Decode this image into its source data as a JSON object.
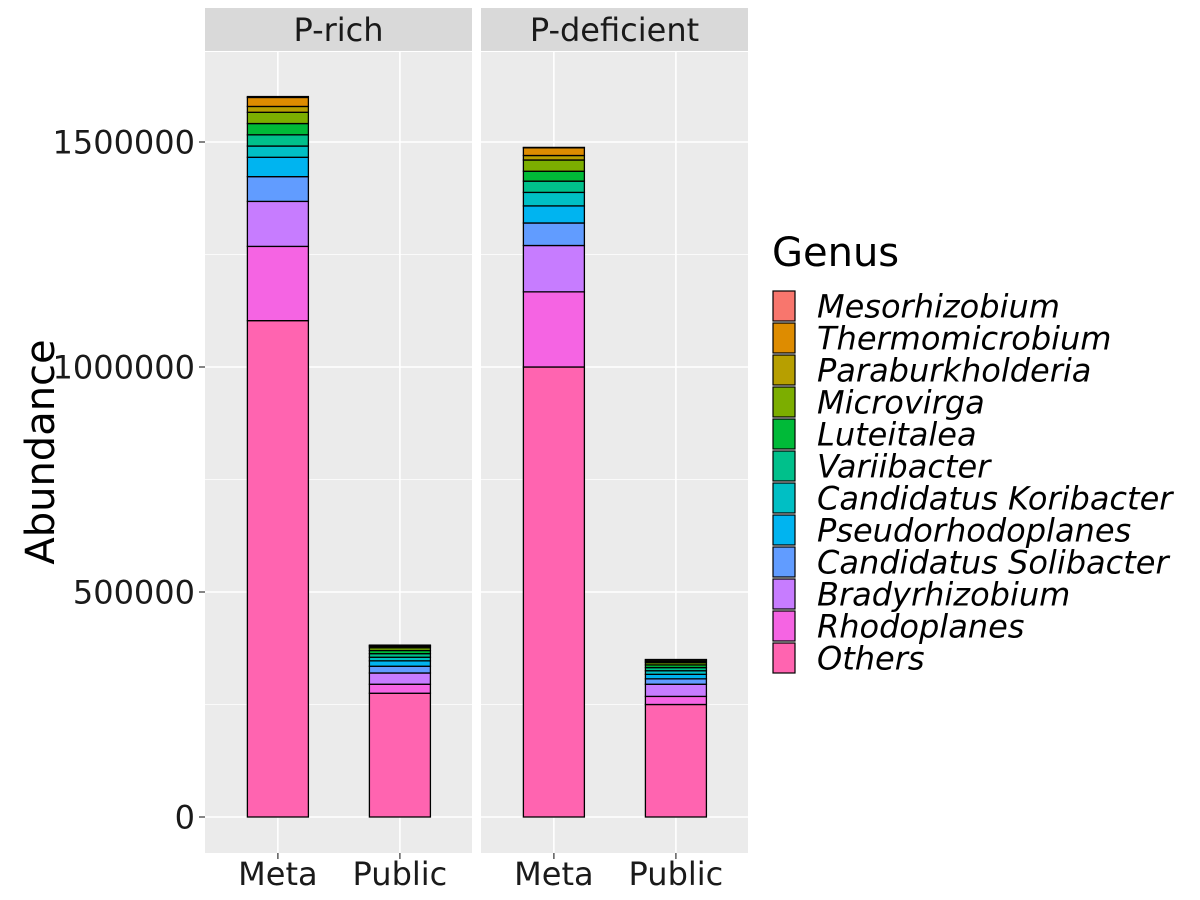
{
  "chart_data": {
    "type": "bar",
    "stacked": true,
    "facets": [
      "P-rich",
      "P-deficient"
    ],
    "categories": [
      "Meta",
      "Public"
    ],
    "ylabel": "Abundance",
    "xlabel": "",
    "ylim": [
      -80000,
      1700000
    ],
    "yticks": [
      0,
      500000,
      1000000,
      1500000
    ],
    "ytick_labels": [
      "0",
      "500000",
      "1000000",
      "1500000"
    ],
    "grid": true,
    "legend": {
      "title": "Genus",
      "position": "right",
      "items": [
        {
          "name": "Mesorhizobium",
          "color": "#F8766D"
        },
        {
          "name": "Thermomicrobium",
          "color": "#DE8C00"
        },
        {
          "name": "Paraburkholderia",
          "color": "#B79F00"
        },
        {
          "name": "Microvirga",
          "color": "#7CAE00"
        },
        {
          "name": "Luteitalea",
          "color": "#00BA38"
        },
        {
          "name": "Variibacter",
          "color": "#00C08B"
        },
        {
          "name": "Candidatus Koribacter",
          "color": "#00BFC4"
        },
        {
          "name": "Pseudorhodoplanes",
          "color": "#00B4F0"
        },
        {
          "name": "Candidatus Solibacter",
          "color": "#619CFF"
        },
        {
          "name": "Bradyrhizobium",
          "color": "#C77CFF"
        },
        {
          "name": "Rhodoplanes",
          "color": "#F564E3"
        },
        {
          "name": "Others",
          "color": "#FF64B0"
        }
      ]
    },
    "stack_order_bottom_to_top": [
      "Others",
      "Rhodoplanes",
      "Bradyrhizobium",
      "Candidatus Solibacter",
      "Pseudorhodoplanes",
      "Candidatus Koribacter",
      "Variibacter",
      "Luteitalea",
      "Microvirga",
      "Paraburkholderia",
      "Thermomicrobium",
      "Mesorhizobium"
    ],
    "series": [
      {
        "facet": "P-rich",
        "category": "Meta",
        "values": {
          "Others": 1103000,
          "Rhodoplanes": 165000,
          "Bradyrhizobium": 100000,
          "Candidatus Solibacter": 55000,
          "Pseudorhodoplanes": 43000,
          "Candidatus Koribacter": 25000,
          "Variibacter": 25000,
          "Luteitalea": 25000,
          "Microvirga": 25000,
          "Paraburkholderia": 13000,
          "Thermomicrobium": 20000,
          "Mesorhizobium": 2000
        }
      },
      {
        "facet": "P-rich",
        "category": "Public",
        "values": {
          "Others": 275000,
          "Rhodoplanes": 20000,
          "Bradyrhizobium": 25000,
          "Candidatus Solibacter": 15000,
          "Pseudorhodoplanes": 12000,
          "Candidatus Koribacter": 8000,
          "Variibacter": 8000,
          "Luteitalea": 7000,
          "Microvirga": 6000,
          "Paraburkholderia": 3000,
          "Thermomicrobium": 2000,
          "Mesorhizobium": 1000
        }
      },
      {
        "facet": "P-deficient",
        "category": "Meta",
        "values": {
          "Others": 1000000,
          "Rhodoplanes": 167000,
          "Bradyrhizobium": 103000,
          "Candidatus Solibacter": 50000,
          "Pseudorhodoplanes": 38000,
          "Candidatus Koribacter": 30000,
          "Variibacter": 25000,
          "Luteitalea": 22000,
          "Microvirga": 25000,
          "Paraburkholderia": 10000,
          "Thermomicrobium": 17000,
          "Mesorhizobium": 1000
        }
      },
      {
        "facet": "P-deficient",
        "category": "Public",
        "values": {
          "Others": 250000,
          "Rhodoplanes": 18000,
          "Bradyrhizobium": 27000,
          "Candidatus Solibacter": 12000,
          "Pseudorhodoplanes": 10000,
          "Candidatus Koribacter": 8000,
          "Variibacter": 7000,
          "Luteitalea": 6000,
          "Microvirga": 5000,
          "Paraburkholderia": 3000,
          "Thermomicrobium": 3000,
          "Mesorhizobium": 1000
        }
      }
    ]
  }
}
